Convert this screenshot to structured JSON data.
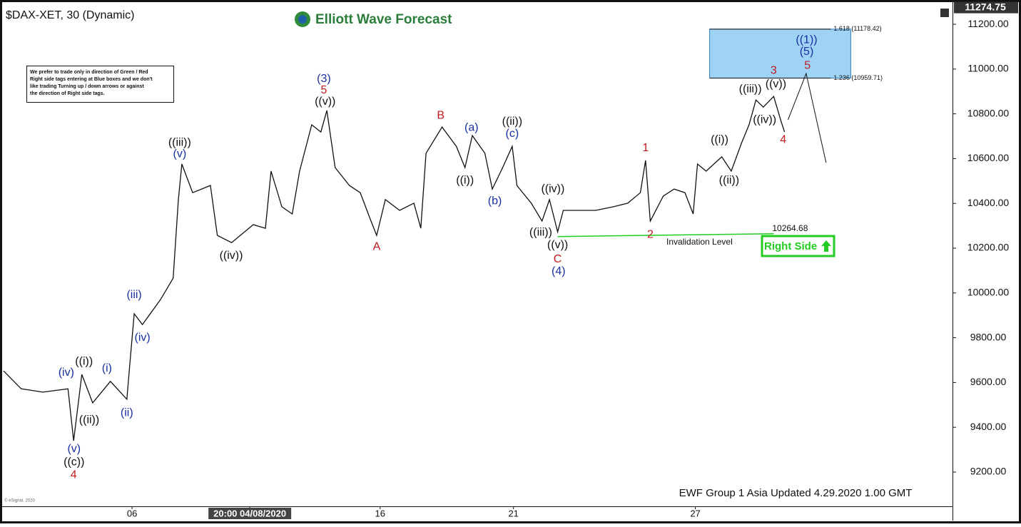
{
  "chart_data": {
    "type": "line",
    "title": "$DAX-XET, 30 (Dynamic)",
    "brand": "Elliott Wave Forecast",
    "note": [
      "We prefer to trade only in direction of Green / Red",
      "Right side tags entering at Blue boxes and we don't",
      "like trading Turning up / down arrows or against",
      "the direction of Right side tags."
    ],
    "footer": "EWF Group 1 Asia Updated 4.29.2020 1.00 GMT",
    "source": "© eSignal, 2020",
    "right_side": "Right Side",
    "last_price": 11274.75,
    "color": "#111111",
    "x": [
      0.08,
      0.49,
      0.99,
      1.57,
      1.7,
      1.89,
      2.14,
      2.55,
      2.93,
      3.0,
      3.1,
      3.29,
      3.71,
      4.0,
      4.12,
      4.2,
      4.45,
      4.86,
      5.02,
      5.35,
      5.85,
      6.13,
      6.26,
      6.51,
      6.75,
      6.92,
      7.2,
      7.41,
      7.55,
      7.74,
      8.07,
      8.32,
      8.57,
      8.7,
      8.9,
      9.23,
      9.56,
      9.72,
      9.84,
      10.21,
      10.54,
      10.74,
      10.91,
      11.2,
      11.37,
      11.61,
      11.83,
      11.94,
      12.27,
      12.52,
      12.69,
      12.88,
      13.01,
      13.43,
      13.76,
      14.17,
      14.5,
      14.79,
      14.91,
      15.02,
      15.32,
      15.57,
      15.82,
      16.01,
      16.11,
      16.31,
      16.67,
      16.89,
      17.13,
      17.3,
      17.46,
      17.63,
      17.87,
      18.04,
      18.12
    ],
    "values": [
      9652,
      9572,
      9557,
      9572,
      9340,
      9636,
      9509,
      9605,
      9525,
      9684,
      9907,
      9859,
      9971,
      10066,
      10417,
      10576,
      10448,
      10480,
      10257,
      10225,
      10305,
      10289,
      10544,
      10385,
      10353,
      10544,
      10751,
      10719,
      10815,
      10560,
      10480,
      10448,
      10321,
      10257,
      10417,
      10369,
      10401,
      10289,
      10624,
      10741,
      10655,
      10560,
      10703,
      10624,
      10464,
      10560,
      10655,
      10480,
      10401,
      10321,
      10417,
      10273,
      10369,
      10369,
      10369,
      10385,
      10401,
      10448,
      10592,
      10321,
      10433,
      10464,
      10448,
      10353,
      10576,
      10544,
      10608,
      10544,
      10671,
      10751,
      10862,
      10830,
      10878,
      10767,
      10719
    ],
    "xlim": [
      0,
      22
    ],
    "ylim": [
      9047,
      11283
    ],
    "xticks": [
      {
        "value": 3.05,
        "label": "06"
      },
      {
        "value": 5.77,
        "label": "20:00 04/08/2020"
      },
      {
        "value": 8.78,
        "label": "16"
      },
      {
        "value": 11.86,
        "label": "21"
      },
      {
        "value": 16.06,
        "label": "27"
      }
    ],
    "yticks": [
      {
        "value": 9200,
        "label": "9200.00"
      },
      {
        "value": 9400,
        "label": "9400.00"
      },
      {
        "value": 9600,
        "label": "9600.00"
      },
      {
        "value": 9800,
        "label": "9800.00"
      },
      {
        "value": 10000,
        "label": "10000.00"
      },
      {
        "value": 10200,
        "label": "10200.00"
      },
      {
        "value": 10400,
        "label": "10400.00"
      },
      {
        "value": 10600,
        "label": "10600.00"
      },
      {
        "value": 10800,
        "label": "10800.00"
      },
      {
        "value": 11000,
        "label": "11000.00"
      },
      {
        "value": 11200,
        "label": "11200.00"
      }
    ],
    "annotations": [
      {
        "text": "((c))",
        "x": 1.71,
        "y": 9244,
        "color": "#111111"
      },
      {
        "text": "4",
        "x": 1.7,
        "y": 9187,
        "color": "#c0191e"
      },
      {
        "text": "(v)",
        "x": 1.71,
        "y": 9302,
        "color": "#1a2fa0"
      },
      {
        "text": "((i))",
        "x": 1.94,
        "y": 9693,
        "color": "#111111"
      },
      {
        "text": "(iv)",
        "x": 1.53,
        "y": 9643,
        "color": "#1a2fa0"
      },
      {
        "text": "((ii))",
        "x": 2.06,
        "y": 9432,
        "color": "#111111"
      },
      {
        "text": "(i)",
        "x": 2.47,
        "y": 9662,
        "color": "#1a2fa0"
      },
      {
        "text": "(ii)",
        "x": 2.93,
        "y": 9464,
        "color": "#1a2fa0"
      },
      {
        "text": "(iii)",
        "x": 3.1,
        "y": 9990,
        "color": "#1a2fa0"
      },
      {
        "text": "(iv)",
        "x": 3.29,
        "y": 9799,
        "color": "#1a2fa0"
      },
      {
        "text": "((iii))",
        "x": 4.15,
        "y": 10671,
        "color": "#111111"
      },
      {
        "text": "(v)",
        "x": 4.15,
        "y": 10620,
        "color": "#1a2fa0"
      },
      {
        "text": "((iv))",
        "x": 5.34,
        "y": 10165,
        "color": "#111111"
      },
      {
        "text": "(3)",
        "x": 7.48,
        "y": 10955,
        "color": "#1a2fa0"
      },
      {
        "text": "5",
        "x": 7.48,
        "y": 10904,
        "color": "#c0191e"
      },
      {
        "text": "((v))",
        "x": 7.51,
        "y": 10853,
        "color": "#111111"
      },
      {
        "text": "A",
        "x": 8.7,
        "y": 10206,
        "color": "#c0191e"
      },
      {
        "text": "B",
        "x": 10.18,
        "y": 10792,
        "color": "#c0191e"
      },
      {
        "text": "(a)",
        "x": 10.89,
        "y": 10738,
        "color": "#1a2fa0"
      },
      {
        "text": "((i))",
        "x": 10.74,
        "y": 10502,
        "color": "#111111"
      },
      {
        "text": "(b)",
        "x": 11.43,
        "y": 10410,
        "color": "#1a2fa0"
      },
      {
        "text": "((ii))",
        "x": 11.83,
        "y": 10764,
        "color": "#111111"
      },
      {
        "text": "(c)",
        "x": 11.83,
        "y": 10710,
        "color": "#1a2fa0"
      },
      {
        "text": "((iv))",
        "x": 12.77,
        "y": 10464,
        "color": "#111111"
      },
      {
        "text": "((iii))",
        "x": 12.49,
        "y": 10270,
        "color": "#111111"
      },
      {
        "text": "((v))",
        "x": 12.88,
        "y": 10213,
        "color": "#111111"
      },
      {
        "text": "C",
        "x": 12.88,
        "y": 10149,
        "color": "#c0191e"
      },
      {
        "text": "(4)",
        "x": 12.9,
        "y": 10095,
        "color": "#1a2fa0"
      },
      {
        "text": "1",
        "x": 14.91,
        "y": 10646,
        "color": "#c0191e"
      },
      {
        "text": "2",
        "x": 15.02,
        "y": 10260,
        "color": "#c0191e"
      },
      {
        "text": "((i))",
        "x": 16.62,
        "y": 10684,
        "color": "#111111"
      },
      {
        "text": "((ii))",
        "x": 16.84,
        "y": 10502,
        "color": "#111111"
      },
      {
        "text": "((iii))",
        "x": 17.33,
        "y": 10910,
        "color": "#111111"
      },
      {
        "text": "((iv))",
        "x": 17.66,
        "y": 10773,
        "color": "#111111"
      },
      {
        "text": "((v))",
        "x": 17.92,
        "y": 10932,
        "color": "#111111"
      },
      {
        "text": "3",
        "x": 17.87,
        "y": 10993,
        "color": "#c0191e"
      },
      {
        "text": "4",
        "x": 18.09,
        "y": 10684,
        "color": "#c0191e"
      },
      {
        "text": "((1))",
        "x": 18.63,
        "y": 11130,
        "color": "#1a2fa0"
      },
      {
        "text": "(5)",
        "x": 18.63,
        "y": 11076,
        "color": "#1a2fa0"
      },
      {
        "text": "5",
        "x": 18.65,
        "y": 11015,
        "color": "#c0191e"
      }
    ],
    "projection": {
      "x": [
        18.2,
        18.62,
        19.08
      ],
      "values": [
        10773,
        10980,
        10582
      ]
    },
    "target_box": {
      "x": [
        16.39,
        19.65
      ],
      "levels": [
        {
          "value": 11178.42,
          "label": "1.618 (11178.42)"
        },
        {
          "value": 10959.71,
          "label": "1.236 (10959.71)"
        }
      ]
    },
    "invalidation": {
      "value": 10264.68,
      "label": "Invalidation Level",
      "x": [
        12.88,
        17.87
      ]
    }
  }
}
